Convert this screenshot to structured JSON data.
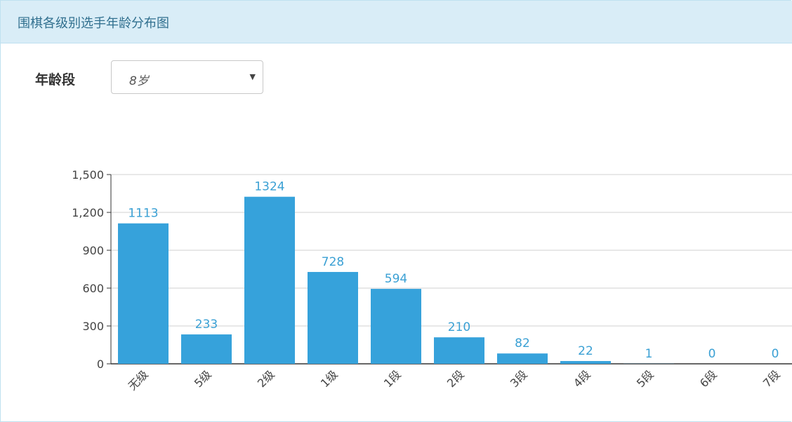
{
  "panel": {
    "title": "围棋各级别选手年龄分布图"
  },
  "filter": {
    "label": "年龄段",
    "selected": "8岁"
  },
  "chart_data": {
    "type": "bar",
    "categories": [
      "无级",
      "5级",
      "2级",
      "1级",
      "1段",
      "2段",
      "3段",
      "4段",
      "5段",
      "6段",
      "7段"
    ],
    "values": [
      1113,
      233,
      1324,
      728,
      594,
      210,
      82,
      22,
      1,
      0,
      0
    ],
    "data_labels": [
      "1113",
      "233",
      "1324",
      "728",
      "594",
      "210",
      "82",
      "22",
      "1",
      "0",
      "0"
    ],
    "yticks": [
      "0",
      "300",
      "600",
      "900",
      "1,200",
      "1,500"
    ],
    "ytick_values": [
      0,
      300,
      600,
      900,
      1200,
      1500
    ],
    "ylim": [
      0,
      1500
    ],
    "grid": true,
    "bar_color": "#36a2db",
    "label_color": "#3aa0d4"
  }
}
